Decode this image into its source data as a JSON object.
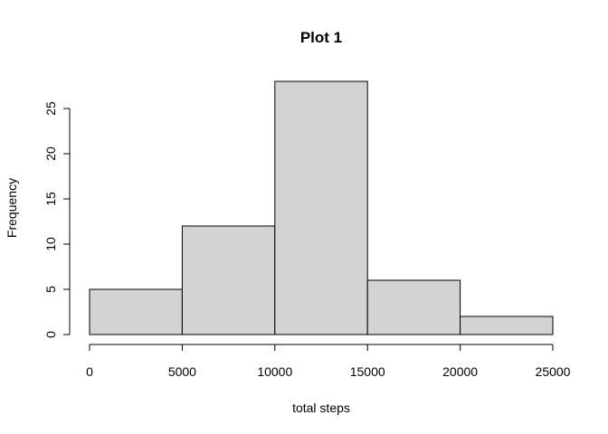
{
  "chart_data": {
    "type": "bar",
    "title": "Plot 1",
    "xlabel": "total steps",
    "ylabel": "Frequency",
    "bins": [
      {
        "start": 0,
        "end": 5000,
        "count": 5
      },
      {
        "start": 5000,
        "end": 10000,
        "count": 12
      },
      {
        "start": 10000,
        "end": 15000,
        "count": 28
      },
      {
        "start": 15000,
        "end": 20000,
        "count": 6
      },
      {
        "start": 20000,
        "end": 25000,
        "count": 2
      }
    ],
    "xlim": [
      0,
      25000
    ],
    "ylim": [
      0,
      28
    ],
    "x_ticks": [
      0,
      5000,
      10000,
      15000,
      20000,
      25000
    ],
    "x_tick_labels": [
      "0",
      "5000",
      "10000",
      "15000",
      "20000",
      "25000"
    ],
    "y_ticks": [
      0,
      5,
      10,
      15,
      20,
      25
    ],
    "y_tick_labels": [
      "0",
      "5",
      "10",
      "15",
      "20",
      "25"
    ],
    "bar_fill": "#d3d3d3",
    "grid": false
  }
}
